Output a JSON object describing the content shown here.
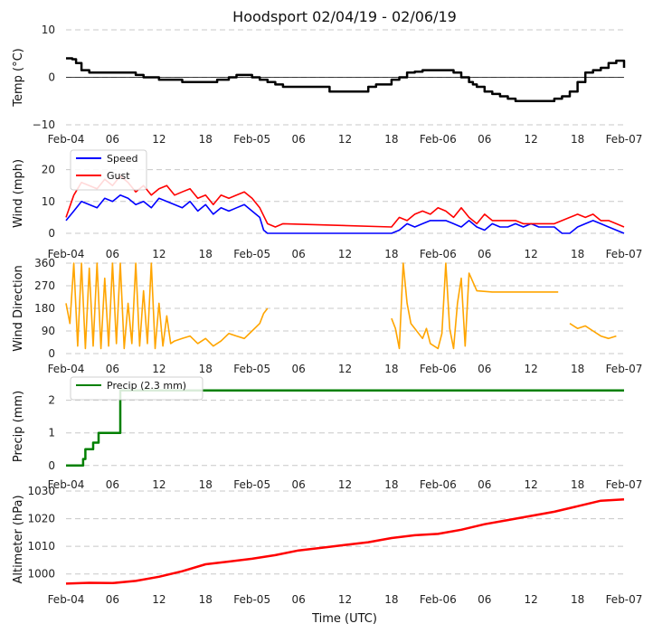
{
  "chart_data": {
    "type": "line",
    "title": "Hoodsport 02/04/19 - 02/06/19",
    "xlabel": "Time (UTC)",
    "x_ticks": [
      "Feb-04",
      "06",
      "12",
      "18",
      "Feb-05",
      "06",
      "12",
      "18",
      "Feb-06",
      "06",
      "12",
      "18",
      "Feb-07"
    ],
    "x_range_hours": [
      0,
      72
    ],
    "panels": [
      {
        "id": "temp",
        "ylabel": "Temp (°C)",
        "ylim": [
          -10,
          10
        ],
        "yticks": [
          "10",
          "0",
          "−10"
        ],
        "ytick_values": [
          10,
          0,
          -10
        ],
        "zero_line": true,
        "legend": null,
        "series": [
          {
            "name": "Temp",
            "color": "#000000",
            "x": [
              0,
              0.8,
              1.3,
              2,
              3,
              6,
              8,
              9,
              10,
              11,
              12,
              13,
              15,
              16,
              19,
              19.5,
              21,
              22,
              23,
              24,
              25,
              26,
              27,
              28,
              31,
              32,
              34,
              37,
              38,
              39,
              40,
              42,
              43,
              44,
              45,
              46,
              47,
              48,
              50,
              51,
              52,
              52.5,
              53,
              54,
              55,
              56,
              57,
              58,
              60,
              62,
              63,
              64,
              65,
              66,
              67,
              68,
              69,
              70,
              71,
              72
            ],
            "y": [
              4,
              3.8,
              3,
              1.5,
              1,
              1,
              1,
              0.5,
              0,
              0,
              -0.5,
              -0.5,
              -1,
              -1,
              -1,
              -0.5,
              0,
              0.5,
              0.5,
              0,
              -0.5,
              -1,
              -1.5,
              -2,
              -2,
              -2,
              -3,
              -3,
              -3,
              -2,
              -1.5,
              -0.5,
              0,
              1,
              1.2,
              1.5,
              1.5,
              1.5,
              1,
              0,
              -1,
              -1.5,
              -2,
              -3,
              -3.5,
              -4,
              -4.5,
              -5,
              -5,
              -5,
              -4.5,
              -4,
              -3,
              -1,
              1,
              1.5,
              2,
              3,
              3.5,
              2
            ]
          }
        ]
      },
      {
        "id": "wind",
        "ylabel": "Wind (mph)",
        "ylim": [
          0,
          25
        ],
        "yticks": [
          "20",
          "10",
          "0"
        ],
        "ytick_values": [
          20,
          10,
          0
        ],
        "zero_line": false,
        "legend": [
          "Speed",
          "Gust"
        ],
        "series": [
          {
            "name": "Speed",
            "color": "#0000ff",
            "x": [
              0,
              1,
              2,
              3,
              4,
              5,
              6,
              7,
              8,
              9,
              10,
              11,
              12,
              13,
              14,
              15,
              16,
              17,
              18,
              19,
              20,
              21,
              22,
              23,
              24,
              25,
              25.5,
              26,
              27,
              30,
              35,
              40,
              42,
              43,
              44,
              45,
              46,
              47,
              48,
              49,
              50,
              51,
              52,
              53,
              54,
              55,
              56,
              57,
              58,
              59,
              60,
              61,
              62,
              63,
              64,
              65,
              66,
              67,
              68,
              69,
              70,
              71,
              72
            ],
            "y": [
              4,
              7,
              10,
              9,
              8,
              11,
              10,
              12,
              11,
              9,
              10,
              8,
              11,
              10,
              9,
              8,
              10,
              7,
              9,
              6,
              8,
              7,
              8,
              9,
              7,
              5,
              1,
              0,
              0,
              0,
              0,
              0,
              0,
              1,
              3,
              2,
              3,
              4,
              4,
              4,
              3,
              2,
              4,
              2,
              1,
              3,
              2,
              2,
              3,
              2,
              3,
              2,
              2,
              2,
              0,
              0,
              2,
              3,
              4,
              3,
              2,
              1,
              0
            ]
          },
          {
            "name": "Gust",
            "color": "#ff0000",
            "x": [
              0,
              1,
              2,
              3,
              4,
              5,
              6,
              7,
              8,
              9,
              10,
              11,
              12,
              13,
              14,
              15,
              16,
              17,
              18,
              19,
              20,
              21,
              22,
              23,
              24,
              25,
              26,
              27,
              28,
              42,
              43,
              44,
              45,
              46,
              47,
              48,
              49,
              50,
              51,
              52,
              53,
              54,
              55,
              56,
              57,
              58,
              59,
              60,
              61,
              62,
              63,
              65,
              66,
              67,
              68,
              69,
              70,
              71,
              72
            ],
            "y": [
              5,
              12,
              16,
              15,
              14,
              17,
              15,
              18,
              16,
              13,
              15,
              12,
              14,
              15,
              12,
              13,
              14,
              11,
              12,
              9,
              12,
              11,
              12,
              13,
              11,
              8,
              3,
              2,
              3,
              2,
              5,
              4,
              6,
              7,
              6,
              8,
              7,
              5,
              8,
              5,
              3,
              6,
              4,
              4,
              4,
              4,
              3,
              3,
              3,
              3,
              3,
              5,
              6,
              5,
              6,
              4,
              4,
              3,
              2
            ]
          }
        ]
      },
      {
        "id": "dir",
        "ylabel": "Wind Direction",
        "ylim": [
          0,
          360
        ],
        "yticks": [
          "360",
          "270",
          "180",
          "90",
          "0"
        ],
        "ytick_values": [
          360,
          270,
          180,
          90,
          0
        ],
        "zero_line": false,
        "legend": null,
        "series": [
          {
            "name": "Wind Direction",
            "color": "#ffa500",
            "x": [
              0,
              0.5,
              1,
              1.5,
              2,
              2.5,
              3,
              3.5,
              4,
              4.5,
              5,
              5.5,
              6,
              6.5,
              7,
              7.5,
              8,
              8.5,
              9,
              9.5,
              10,
              10.5,
              11,
              11.5,
              12,
              12.5,
              13,
              13.5,
              14,
              15,
              16,
              17,
              18,
              19,
              20,
              21,
              22,
              23,
              24,
              25,
              25.5,
              26
            ],
            "y": [
              200,
              120,
              360,
              30,
              360,
              20,
              340,
              30,
              360,
              20,
              300,
              30,
              360,
              40,
              360,
              20,
              200,
              40,
              360,
              30,
              250,
              40,
              360,
              20,
              200,
              30,
              150,
              40,
              50,
              60,
              70,
              40,
              60,
              30,
              50,
              80,
              70,
              60,
              90,
              120,
              160,
              180
            ]
          },
          {
            "name": "Wind Direction 2",
            "color": "#ffa500",
            "x": [
              42,
              42.5,
              43,
              43.5,
              44,
              44.5,
              45,
              45.5,
              46,
              46.5,
              47,
              47.5,
              48,
              48.5,
              49,
              49.5,
              50,
              50.5,
              51,
              51.5,
              52,
              53,
              55,
              58,
              61,
              63.5
            ],
            "y": [
              140,
              100,
              20,
              360,
              200,
              120,
              100,
              80,
              60,
              100,
              40,
              30,
              20,
              80,
              360,
              100,
              20,
              200,
              300,
              30,
              320,
              250,
              245,
              245,
              245,
              245
            ]
          },
          {
            "name": "Wind Direction 3",
            "color": "#ffa500",
            "x": [
              65,
              66,
              67,
              68,
              69,
              70,
              71
            ],
            "y": [
              120,
              100,
              110,
              90,
              70,
              60,
              70
            ]
          }
        ]
      },
      {
        "id": "precip",
        "ylabel": "Precip (mm)",
        "ylim": [
          -0.2,
          2.6
        ],
        "yticks": [
          "2",
          "1",
          "0"
        ],
        "ytick_values": [
          2,
          1,
          0
        ],
        "zero_line": false,
        "legend": [
          "Precip (2.3 mm)"
        ],
        "series": [
          {
            "name": "Precip (2.3 mm)",
            "color": "#008000",
            "x": [
              0,
              2,
              2.2,
              2.5,
              3.5,
              4.2,
              6.9,
              7.0,
              72
            ],
            "y": [
              0,
              0,
              0.2,
              0.5,
              0.7,
              1.0,
              1.0,
              2.3,
              2.3
            ]
          }
        ]
      },
      {
        "id": "alt",
        "ylabel": "Altimeter (hPa)",
        "ylim": [
          995,
          1030
        ],
        "yticks": [
          "1030",
          "1020",
          "1010",
          "1000"
        ],
        "ytick_values": [
          1030,
          1020,
          1010,
          1000
        ],
        "zero_line": false,
        "legend": null,
        "series": [
          {
            "name": "Altimeter",
            "color": "#ff0000",
            "x": [
              0,
              3,
              6,
              9,
              12,
              15,
              18,
              21,
              24,
              27,
              30,
              33,
              36,
              39,
              42,
              45,
              48,
              51,
              54,
              57,
              60,
              63,
              66,
              69,
              72
            ],
            "y": [
              996.5,
              996.8,
              996.7,
              997.5,
              999,
              1001,
              1003.5,
              1004.5,
              1005.5,
              1006.8,
              1008.5,
              1009.5,
              1010.5,
              1011.5,
              1013,
              1014,
              1014.5,
              1016,
              1018,
              1019.5,
              1021,
              1022.5,
              1024.5,
              1026.5,
              1027
            ]
          }
        ]
      }
    ]
  }
}
